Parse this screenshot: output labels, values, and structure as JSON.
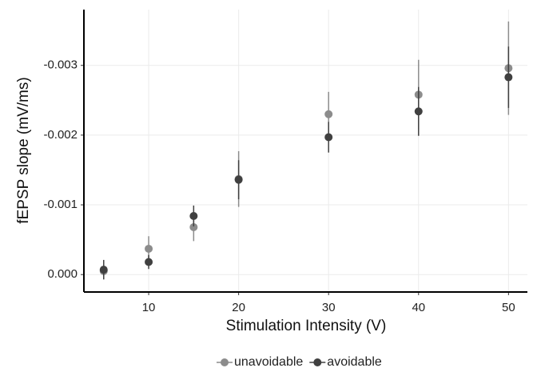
{
  "chart_data": {
    "type": "scatter",
    "x_label": "Stimulation Intensity (V)",
    "y_label": "fEPSP slope (mV/ms)",
    "x": [
      5,
      10,
      15,
      20,
      30,
      40,
      50
    ],
    "series": [
      {
        "name": "unavoidable",
        "color": "#8c8c8c",
        "values": [
          -5e-05,
          -0.00037,
          -0.00068,
          -0.00137,
          -0.0023,
          -0.00258,
          -0.00296
        ],
        "errors": [
          8e-05,
          0.00018,
          0.0002,
          0.0004,
          0.00032,
          0.0005,
          0.00067
        ]
      },
      {
        "name": "avoidable",
        "color": "#404040",
        "values": [
          -7e-05,
          -0.00018,
          -0.00084,
          -0.00136,
          -0.00197,
          -0.00234,
          -0.00283
        ],
        "errors": [
          0.00014,
          0.0001,
          0.00015,
          0.00028,
          0.00022,
          0.00035,
          0.00044
        ]
      }
    ],
    "xlim": [
      2.8,
      52.1
    ],
    "xticks": [
      10,
      20,
      30,
      40,
      50
    ],
    "ylim": [
      0.00025,
      -0.0038
    ],
    "yticks": [
      {
        "value": 0,
        "label": "0.000"
      },
      -0.001,
      -0.002,
      -0.003
    ],
    "grid": true,
    "legend": "bottom"
  }
}
